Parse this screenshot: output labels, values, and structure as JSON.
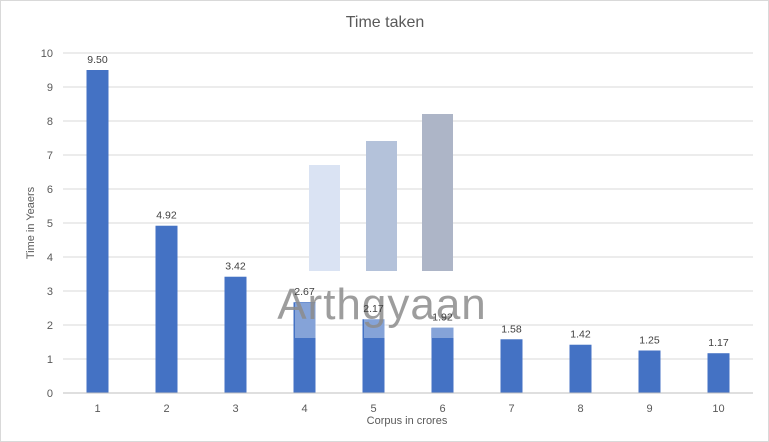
{
  "chart_data": {
    "type": "bar",
    "title": "Time taken",
    "xlabel": "Corpus in crores",
    "ylabel": "Time in Yeaers",
    "categories": [
      "1",
      "2",
      "3",
      "4",
      "5",
      "6",
      "7",
      "8",
      "9",
      "10"
    ],
    "series": [
      {
        "values": [
          9.5,
          4.92,
          3.42,
          2.67,
          2.17,
          1.92,
          1.58,
          1.42,
          1.25,
          1.17
        ],
        "labels": [
          "9.50",
          "4.92",
          "3.42",
          "2.67",
          "2.17",
          "1.92",
          "1.58",
          "1.42",
          "1.25",
          "1.17"
        ],
        "color": "#4472c4"
      }
    ],
    "yticks": [
      "0",
      "1",
      "2",
      "3",
      "4",
      "5",
      "6",
      "7",
      "8",
      "9",
      "10"
    ],
    "ylim": [
      0,
      10
    ],
    "grid": true,
    "legend": "none"
  },
  "watermark": {
    "text": "Arthgyaan",
    "colors": [
      "#dae3f3",
      "#b4c2da",
      "#adb5c7",
      "#8c8c8c"
    ]
  },
  "colors": {
    "gridline": "#d9d9d9",
    "axis": "#bfbfbf"
  }
}
